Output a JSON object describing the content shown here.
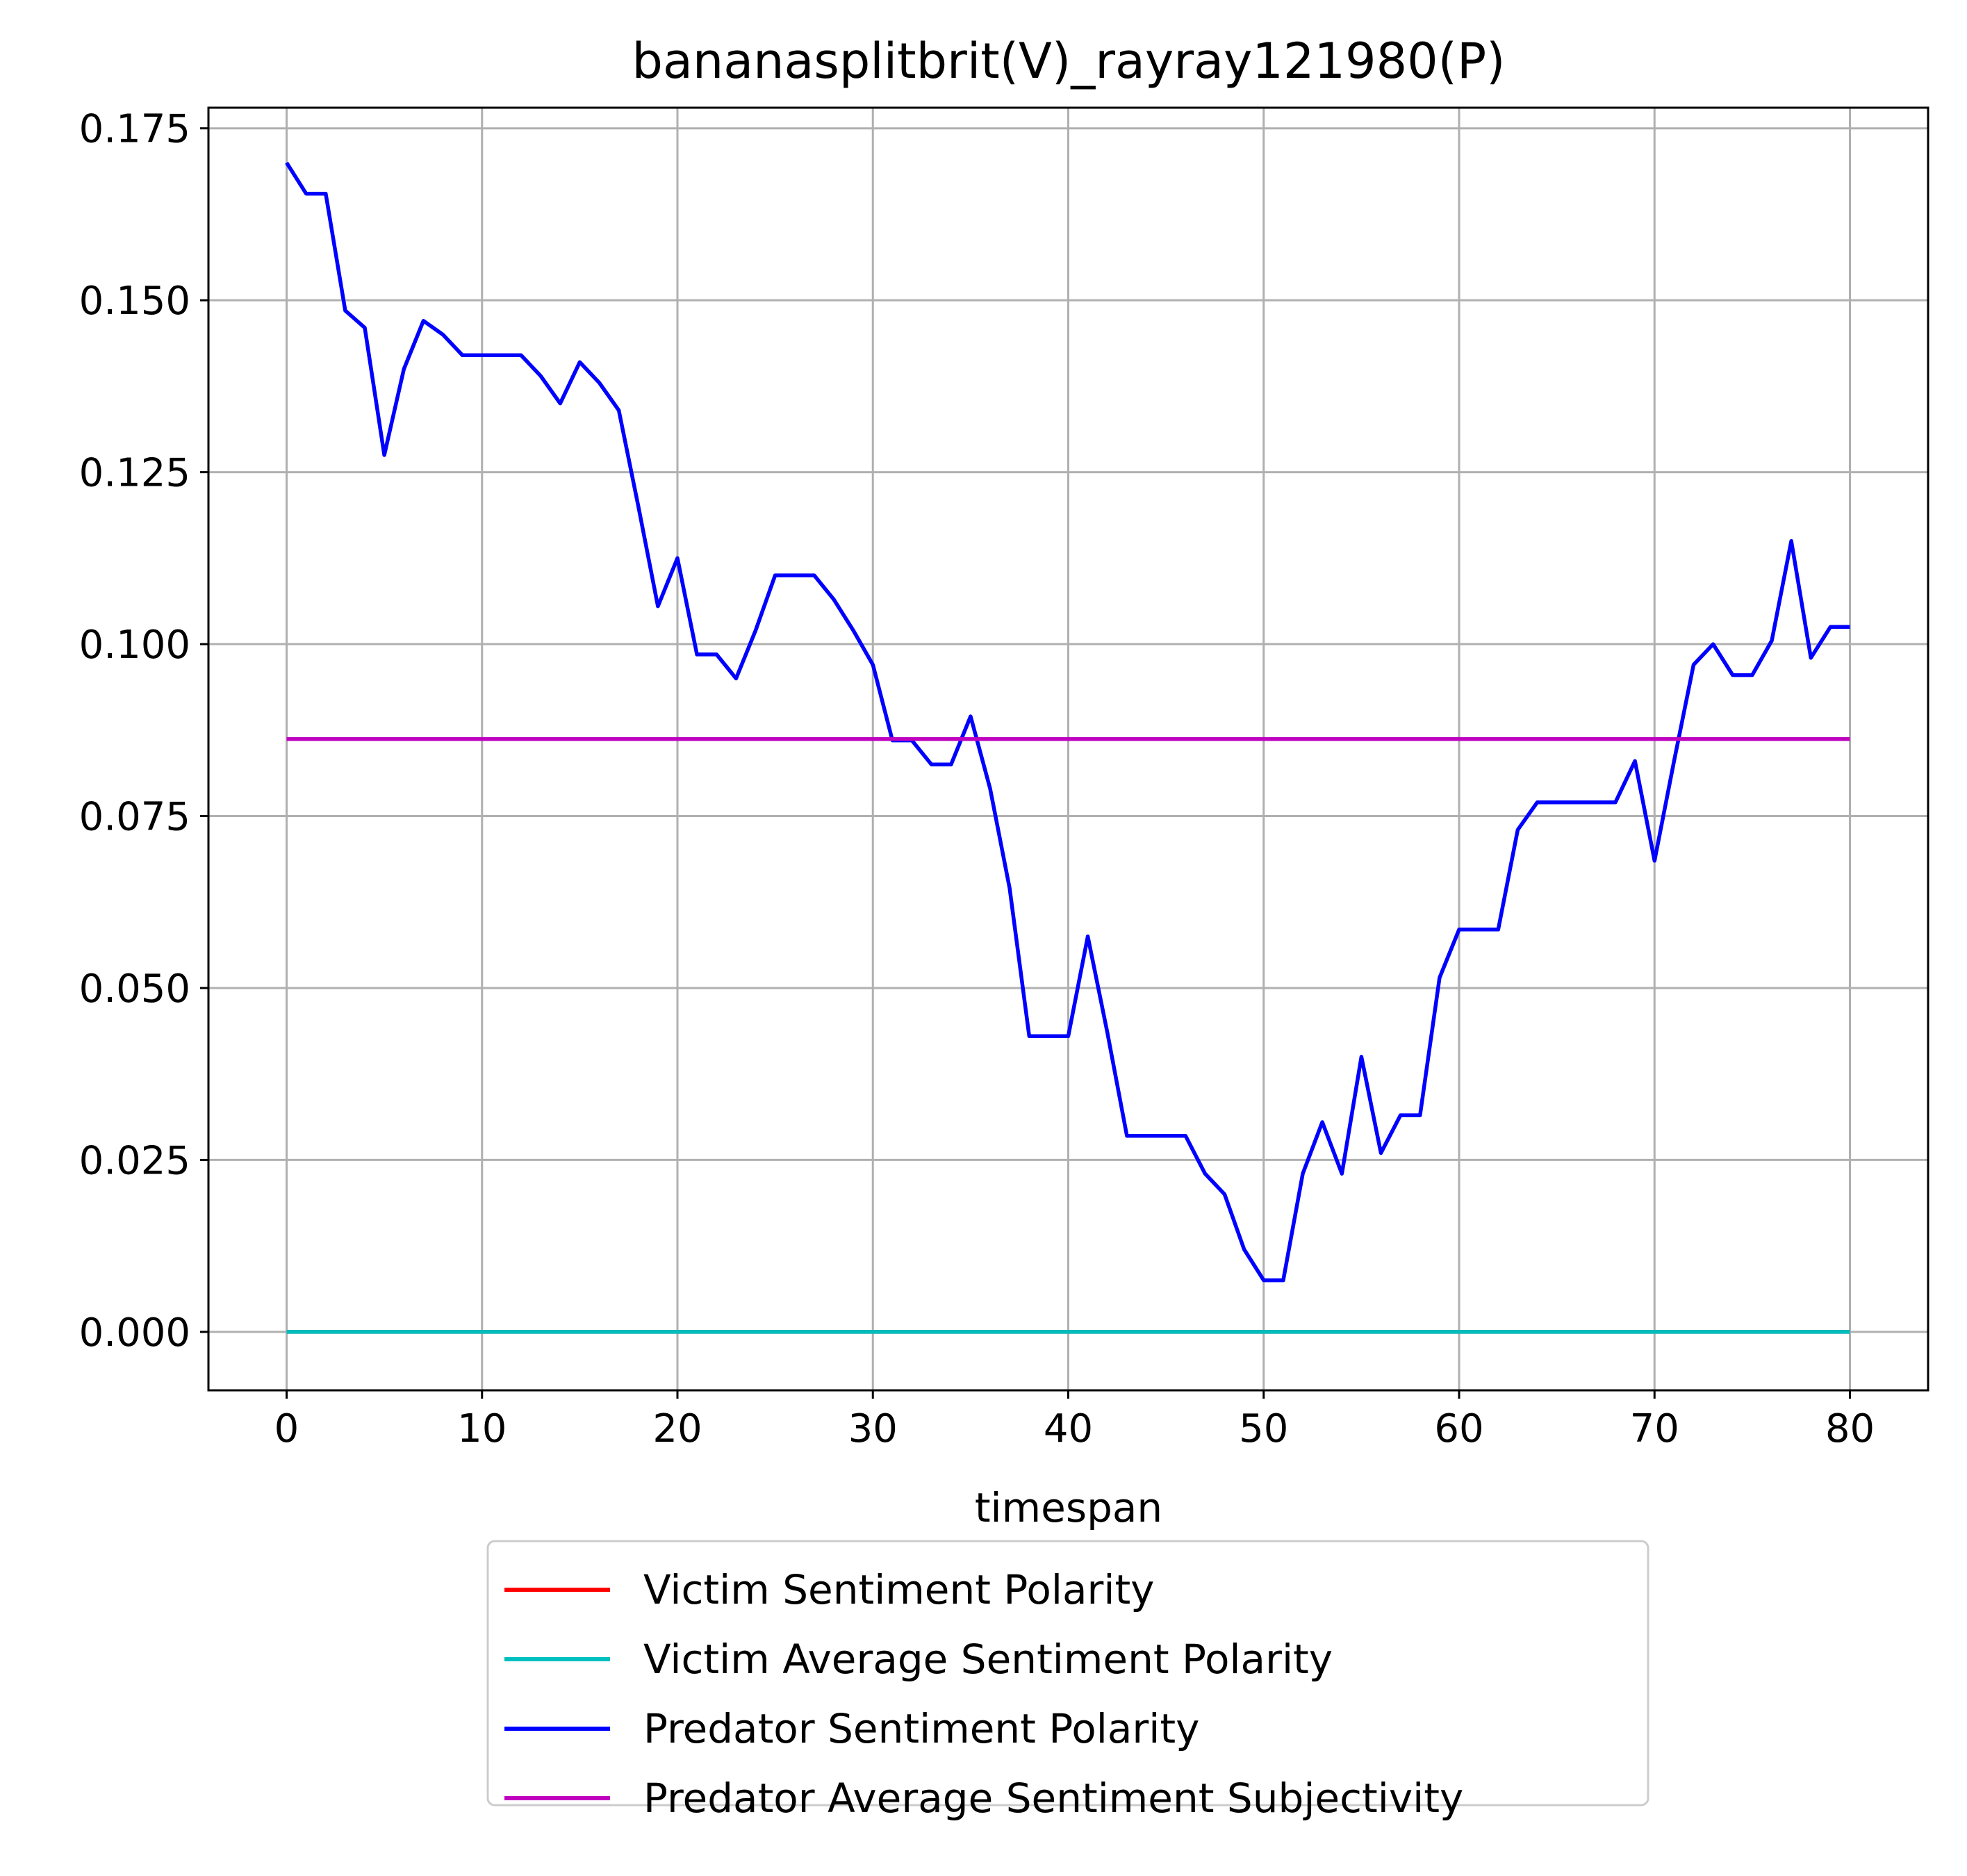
{
  "chart_data": {
    "type": "line",
    "title": "bananasplitbrit(V)_rayray121980(P)",
    "xlabel": "timespan",
    "ylabel": "",
    "xlim": [
      -4,
      84
    ],
    "ylim": [
      -0.0085,
      0.178
    ],
    "x_ticks": [
      0,
      10,
      20,
      30,
      40,
      50,
      60,
      70,
      80
    ],
    "x_tick_labels": [
      "0",
      "10",
      "20",
      "30",
      "40",
      "50",
      "60",
      "70",
      "80"
    ],
    "y_ticks": [
      0,
      0.025,
      0.05,
      0.075,
      0.1,
      0.125,
      0.15,
      0.175
    ],
    "y_tick_labels": [
      "0.000",
      "0.025",
      "0.050",
      "0.075",
      "0.100",
      "0.125",
      "0.150",
      "0.175"
    ],
    "grid": true,
    "legend_position": "below the plot, centered",
    "series": [
      {
        "name": "Victim Sentiment Polarity",
        "color": "#ff0000",
        "x": [
          0,
          80
        ],
        "values": [
          0,
          0
        ]
      },
      {
        "name": "Victim Average Sentiment Polarity",
        "color": "#00bfbf",
        "x": [
          0,
          80
        ],
        "values": [
          0,
          0
        ]
      },
      {
        "name": "Predator Sentiment Polarity",
        "color": "#0000ff",
        "x": [
          0,
          1,
          2,
          3,
          4,
          5,
          6,
          7,
          8,
          9,
          10,
          11,
          12,
          13,
          14,
          15,
          16,
          17,
          18,
          19,
          20,
          21,
          22,
          23,
          24,
          25,
          26,
          27,
          28,
          29,
          30,
          31,
          32,
          33,
          34,
          35,
          36,
          37,
          38,
          39,
          40,
          41,
          42,
          43,
          44,
          45,
          46,
          47,
          48,
          49,
          50,
          51,
          52,
          53,
          54,
          55,
          56,
          57,
          58,
          59,
          60,
          61,
          62,
          63,
          64,
          65,
          66,
          67,
          68,
          69,
          70,
          71,
          72,
          73,
          74,
          75,
          76,
          77,
          78,
          79,
          80
        ],
        "values": [
          0.17,
          0.1655,
          0.1655,
          0.1485,
          0.146,
          0.1275,
          0.14,
          0.147,
          0.145,
          0.142,
          0.142,
          0.142,
          0.142,
          0.139,
          0.135,
          0.141,
          0.138,
          0.134,
          0.12,
          0.1055,
          0.1125,
          0.0985,
          0.0985,
          0.095,
          0.102,
          0.11,
          0.11,
          0.11,
          0.1065,
          0.102,
          0.097,
          0.086,
          0.086,
          0.0825,
          0.0825,
          0.0895,
          0.079,
          0.0645,
          0.043,
          0.043,
          0.043,
          0.0575,
          0.0435,
          0.0285,
          0.0285,
          0.0285,
          0.0285,
          0.023,
          0.02,
          0.012,
          0.0075,
          0.0075,
          0.023,
          0.0305,
          0.023,
          0.04,
          0.026,
          0.0315,
          0.0315,
          0.0515,
          0.0585,
          0.0585,
          0.0585,
          0.073,
          0.077,
          0.077,
          0.077,
          0.077,
          0.077,
          0.083,
          0.0685,
          0.083,
          0.097,
          0.1,
          0.0955,
          0.0955,
          0.1005,
          0.115,
          0.098,
          0.1025,
          0.1025
        ]
      },
      {
        "name": "Predator Average Sentiment Subjectivity",
        "color": "#bf00bf",
        "x": [
          0,
          80
        ],
        "values": [
          0.0862,
          0.0862
        ]
      }
    ]
  }
}
